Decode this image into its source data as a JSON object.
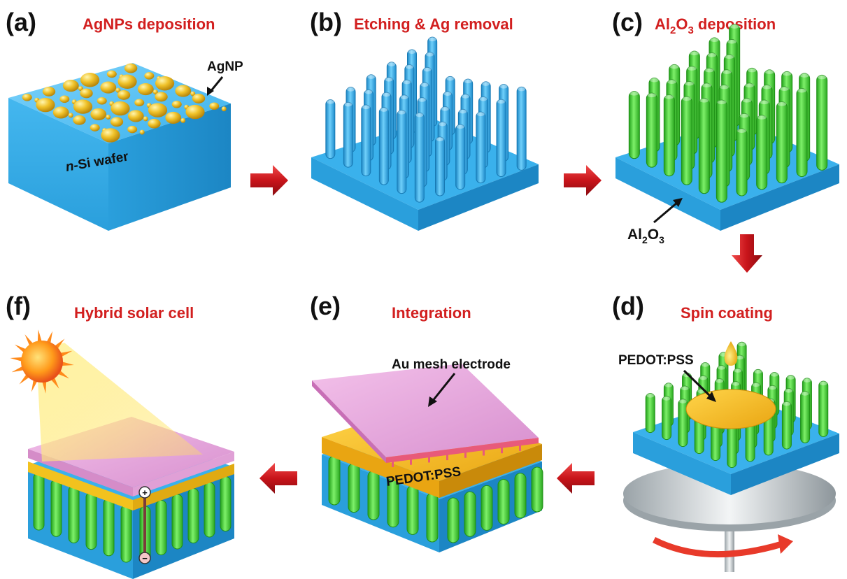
{
  "panels": [
    {
      "id": "a",
      "label": "(a)",
      "title": "AgNPs deposition"
    },
    {
      "id": "b",
      "label": "(b)",
      "title": "Etching & Ag removal"
    },
    {
      "id": "c",
      "label": "(c)",
      "title_main": "Al",
      "title_sub": "2",
      "title_o": "O",
      "title_sub2": "3",
      "title_rest": " deposition"
    },
    {
      "id": "d",
      "label": "(d)",
      "title": "Spin coating"
    },
    {
      "id": "e",
      "label": "(e)",
      "title": "Integration"
    },
    {
      "id": "f",
      "label": "(f)",
      "title": "Hybrid solar cell"
    }
  ],
  "annotations": {
    "agnp": "AgNP",
    "wafer_n": "n",
    "wafer_rest": "-Si wafer",
    "al2o3_a": "Al",
    "al2o3_sub1": "2",
    "al2o3_o": "O",
    "al2o3_sub2": "3",
    "pedot_d": "PEDOT:PSS",
    "au_mesh": "Au mesh electrode",
    "pedot_e": "PEDOT:PSS",
    "plus": "+",
    "minus": "−"
  },
  "colors": {
    "silicon": "#2fa8e4",
    "al2o3": "#3fcf2a",
    "agnp": "#e8b81a",
    "pedot": "#f2b92a",
    "au_mesh": "#e8a6dc",
    "arrow": "#c8141a",
    "title": "#d21f1f"
  }
}
